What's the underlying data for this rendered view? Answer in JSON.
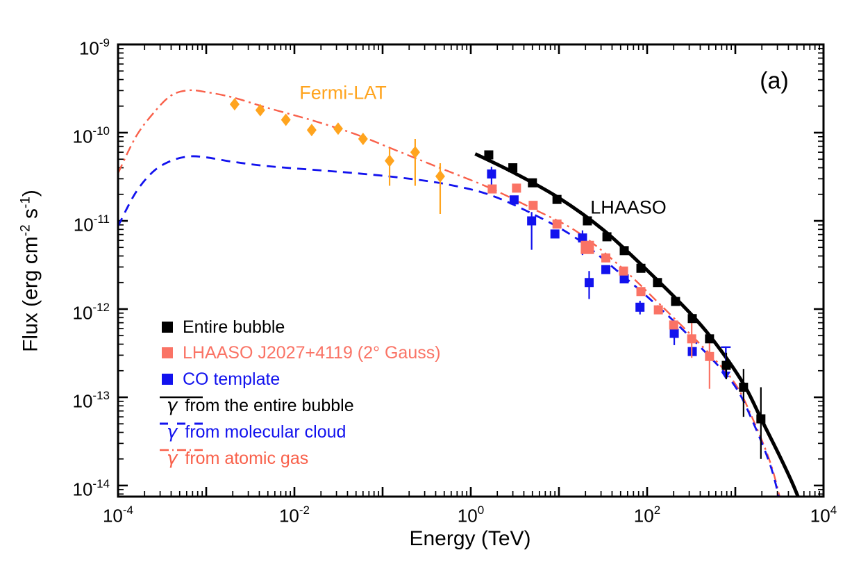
{
  "chart_data": {
    "type": "scatter",
    "title": "",
    "xlabel": "Energy (TeV)",
    "ylabel_parts": [
      {
        "t": "Flux (erg cm"
      },
      {
        "sup": "-2"
      },
      {
        "t": " s"
      },
      {
        "sup": "-1"
      },
      {
        "t": ")"
      }
    ],
    "x_scale": "log",
    "y_scale": "log",
    "x_log_range": [
      -4,
      4
    ],
    "y_log_range": [
      -14.13,
      -9
    ],
    "x_tick_exponents": [
      -4,
      -2,
      0,
      2,
      4
    ],
    "y_tick_exponents": [
      -9,
      -10,
      -11,
      -12,
      -13,
      -14
    ],
    "grid": false,
    "colors": {
      "black": "#000000",
      "orange": "#FFA41E",
      "salmon": "#FA7365",
      "blue": "#1212EE",
      "red_line": "#F9604A"
    },
    "annotations": {
      "panel": {
        "text": "(a)",
        "color": "#000000"
      },
      "fermi": {
        "text": "Fermi-LAT",
        "color": "#FFA41E"
      },
      "lhaaso": {
        "text": "LHAASO",
        "color": "#000000"
      }
    },
    "series": [
      {
        "name": "Fermi-LAT data",
        "marker": "diamond",
        "color": "#FFA41E",
        "points": [
          {
            "E": 0.0021,
            "F": 2.1e-10
          },
          {
            "E": 0.0041,
            "F": 1.8e-10
          },
          {
            "E": 0.008,
            "F": 1.4e-10
          },
          {
            "E": 0.0157,
            "F": 1.07e-10
          },
          {
            "E": 0.0313,
            "F": 1.11e-10
          },
          {
            "E": 0.06,
            "F": 8.5e-11,
            "err": [
              7.5e-11,
              9.6e-11
            ]
          },
          {
            "E": 0.12,
            "F": 4.8e-11,
            "err": [
              2.5e-11,
              6.7e-11
            ]
          },
          {
            "E": 0.234,
            "F": 6e-11,
            "err": [
              2.5e-11,
              8.5e-11
            ]
          },
          {
            "E": 0.45,
            "F": 3.2e-11,
            "err": [
              1.2e-11,
              4.5e-11
            ]
          }
        ]
      },
      {
        "name": "CO template",
        "marker": "square",
        "color": "#1212EE",
        "points": [
          {
            "E": 1.72,
            "F": 3.4e-11,
            "err": [
              2.5e-11,
              4.1e-11
            ]
          },
          {
            "E": 3.1,
            "F": 1.73e-11
          },
          {
            "E": 4.9,
            "F": 1e-11,
            "err": [
              4.7e-12,
              1.26e-11
            ]
          },
          {
            "E": 9.0,
            "F": 7.1e-12
          },
          {
            "E": 18.5,
            "F": 6.4e-12,
            "err": [
              4.1e-12,
              7.8e-12
            ]
          },
          {
            "E": 22,
            "F": 2e-12,
            "err": [
              1.3e-12,
              2.7e-12
            ]
          },
          {
            "E": 34,
            "F": 2.8e-12
          },
          {
            "E": 55,
            "F": 2.2e-12
          },
          {
            "E": 83,
            "F": 1.05e-12,
            "err": [
              8.7e-13,
              1.24e-12
            ]
          },
          {
            "E": 203,
            "F": 5.3e-13,
            "err": [
              3.9e-13,
              7.2e-13
            ]
          },
          {
            "E": 325,
            "F": 3.3e-13
          },
          {
            "E": 780,
            "F": 3.7e-13,
            "limit": true,
            "limit_to": 1.6e-13
          }
        ]
      },
      {
        "name": "LHAASO J2027+4119 (2° Gauss)",
        "marker": "square",
        "color": "#FA7365",
        "points": [
          {
            "E": 1.75,
            "F": 2.3e-11
          },
          {
            "E": 3.3,
            "F": 2.35e-11
          },
          {
            "E": 5.1,
            "F": 1.5e-11
          },
          {
            "E": 9.5,
            "F": 9.2e-12
          },
          {
            "E": 21,
            "F": 5e-12,
            "s": 19
          },
          {
            "E": 34,
            "F": 3.8e-12
          },
          {
            "E": 54,
            "F": 2.7e-12
          },
          {
            "E": 85,
            "F": 1.58e-12
          },
          {
            "E": 134,
            "F": 9.8e-13
          },
          {
            "E": 200,
            "F": 6.6e-13
          },
          {
            "E": 320,
            "F": 4.6e-13,
            "err": [
              2.8e-13,
              7.6e-13
            ]
          },
          {
            "E": 510,
            "F": 2.9e-13,
            "err": [
              1.25e-13,
              4.9e-13
            ]
          }
        ]
      },
      {
        "name": "Entire bubble",
        "marker": "square",
        "color": "#000000",
        "points": [
          {
            "E": 1.6,
            "F": 5.6e-11
          },
          {
            "E": 3.0,
            "F": 4e-11
          },
          {
            "E": 5.0,
            "F": 2.7e-11
          },
          {
            "E": 9.5,
            "F": 1.75e-11
          },
          {
            "E": 21,
            "F": 1e-11
          },
          {
            "E": 35,
            "F": 6.6e-12
          },
          {
            "E": 55,
            "F": 4.6e-12
          },
          {
            "E": 85,
            "F": 2.9e-12
          },
          {
            "E": 131,
            "F": 2e-12
          },
          {
            "E": 210,
            "F": 1.22e-12
          },
          {
            "E": 325,
            "F": 7.8e-13
          },
          {
            "E": 510,
            "F": 4.6e-13
          },
          {
            "E": 790,
            "F": 2.3e-13,
            "err": [
              1.6e-13,
              3.2e-13
            ]
          },
          {
            "E": 1240,
            "F": 1.3e-13,
            "err": [
              6e-14,
              2.1e-13
            ]
          },
          {
            "E": 1950,
            "F": 5.7e-14,
            "err": [
              2e-14,
              1.3e-13
            ]
          }
        ]
      }
    ],
    "curves": [
      {
        "name": "γ from atomic gas",
        "style": "dashdot",
        "color": "#F9604A",
        "width": 2.4,
        "log_points": [
          [
            -4.0,
            -10.46
          ],
          [
            -3.8,
            -10.05
          ],
          [
            -3.6,
            -9.78
          ],
          [
            -3.4,
            -9.58
          ],
          [
            -3.2,
            -9.52
          ],
          [
            -3.0,
            -9.54
          ],
          [
            -2.7,
            -9.6
          ],
          [
            -2.3,
            -9.72
          ],
          [
            -1.8,
            -9.86
          ],
          [
            -1.3,
            -10.02
          ],
          [
            -0.8,
            -10.22
          ],
          [
            -0.3,
            -10.42
          ],
          [
            0.2,
            -10.62
          ],
          [
            0.7,
            -10.86
          ],
          [
            1.2,
            -11.12
          ],
          [
            1.7,
            -11.52
          ],
          [
            2.2,
            -12.0
          ],
          [
            2.7,
            -12.5
          ],
          [
            3.0,
            -12.85
          ],
          [
            3.2,
            -13.25
          ],
          [
            3.4,
            -13.75
          ],
          [
            3.52,
            -14.2
          ]
        ]
      },
      {
        "name": "γ from molecular cloud",
        "style": "dashed",
        "color": "#1212EE",
        "width": 2.8,
        "log_points": [
          [
            -4.0,
            -11.06
          ],
          [
            -3.8,
            -10.68
          ],
          [
            -3.6,
            -10.44
          ],
          [
            -3.4,
            -10.32
          ],
          [
            -3.2,
            -10.27
          ],
          [
            -3.0,
            -10.28
          ],
          [
            -2.7,
            -10.33
          ],
          [
            -2.3,
            -10.38
          ],
          [
            -1.8,
            -10.42
          ],
          [
            -1.3,
            -10.46
          ],
          [
            -0.8,
            -10.51
          ],
          [
            -0.3,
            -10.58
          ],
          [
            0.2,
            -10.7
          ],
          [
            0.7,
            -10.92
          ],
          [
            1.2,
            -11.2
          ],
          [
            1.7,
            -11.6
          ],
          [
            2.2,
            -12.04
          ],
          [
            2.7,
            -12.53
          ],
          [
            3.0,
            -12.88
          ],
          [
            3.2,
            -13.28
          ],
          [
            3.4,
            -13.78
          ],
          [
            3.51,
            -14.2
          ]
        ]
      },
      {
        "name": "γ from the entire bubble",
        "style": "solid",
        "color": "#000000",
        "width": 5,
        "log_points": [
          [
            0.05,
            -10.24
          ],
          [
            0.5,
            -10.46
          ],
          [
            1.0,
            -10.74
          ],
          [
            1.5,
            -11.1
          ],
          [
            2.0,
            -11.56
          ],
          [
            2.5,
            -12.06
          ],
          [
            2.8,
            -12.42
          ],
          [
            3.1,
            -12.86
          ],
          [
            3.3,
            -13.26
          ],
          [
            3.5,
            -13.66
          ],
          [
            3.65,
            -13.98
          ],
          [
            3.74,
            -14.2
          ]
        ]
      }
    ],
    "legend": {
      "position": "left-middle",
      "entries": [
        {
          "type": "square",
          "color": "#000000",
          "label": "Entire bubble",
          "text_color": "#000000"
        },
        {
          "type": "square",
          "color": "#FA7365",
          "label": "LHAASO J2027+4119 (2° Gauss)",
          "text_color": "#FA7365"
        },
        {
          "type": "square",
          "color": "#1212EE",
          "label": "CO template",
          "text_color": "#1212EE"
        },
        {
          "type": "line-solid",
          "color": "#000000",
          "prefix": "γ",
          "label": "from the entire bubble",
          "text_color": "#000000"
        },
        {
          "type": "line-dashed",
          "color": "#1212EE",
          "prefix": "γ",
          "label": "from molecular cloud",
          "text_color": "#1212EE"
        },
        {
          "type": "line-dashdot",
          "color": "#F9604A",
          "prefix": "γ",
          "label": "from atomic gas",
          "text_color": "#F9604A"
        }
      ]
    }
  }
}
